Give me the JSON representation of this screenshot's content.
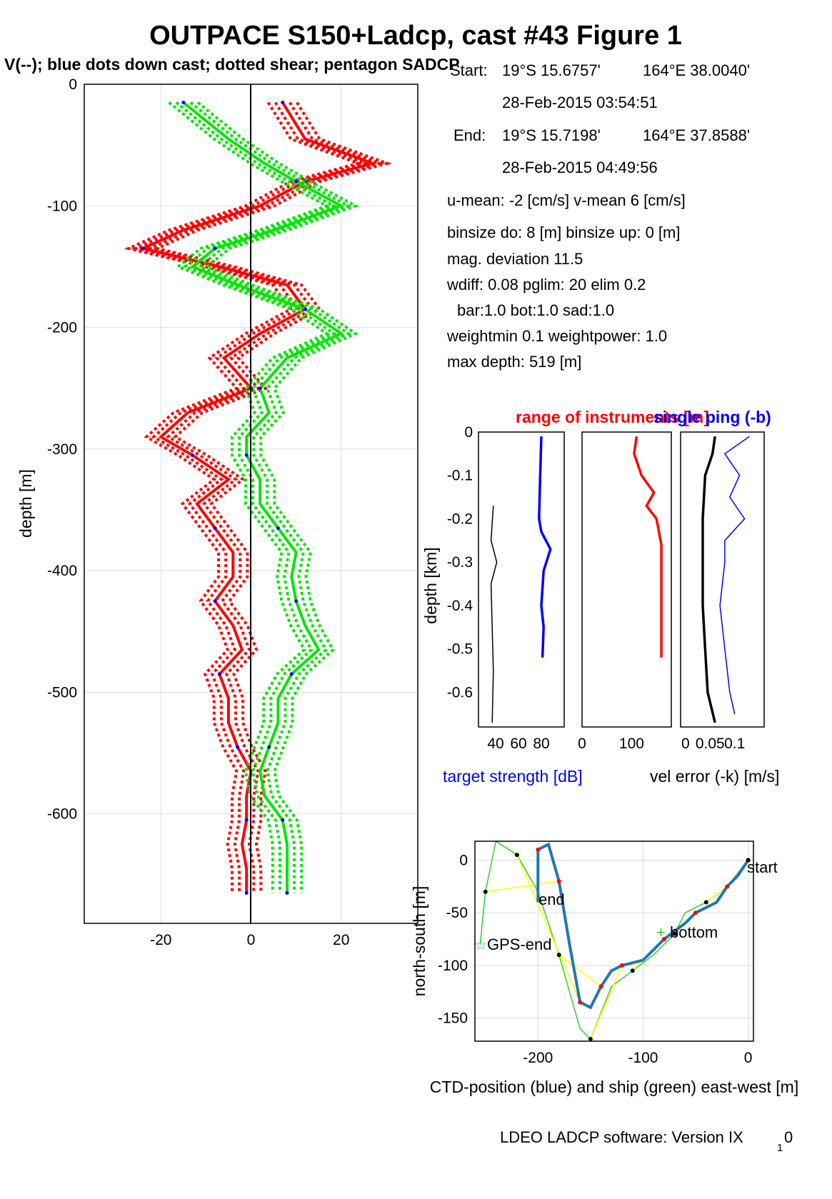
{
  "title": "OUTPACE S150+Ladcp, cast #43  Figure 1",
  "subtitle": "V(--); blue dots down cast; dotted shear; pentagon SADCP",
  "info": {
    "start_label": "Start:",
    "start_lat": "19°S 15.6757'",
    "start_lon": "164°E 38.0040'",
    "start_time": "28-Feb-2015 03:54:51",
    "end_label": "End:",
    "end_lat": "19°S 15.7198'",
    "end_lon": "164°E 37.8588'",
    "end_time": "28-Feb-2015 04:49:56",
    "means": "u-mean:  -2 [cm/s]    v-mean   6 [cm/s]",
    "binsize": "binsize do: 8 [m]  binsize up:  0 [m]",
    "magdev": "mag. deviation 11.5",
    "wdiff": "wdiff: 0.08  pglim: 20  elim 0.2",
    "bar": "bar:1.0 bot:1.0 sad:1.0",
    "weight": "weightmin 0.1  weightpower: 1.0",
    "maxdepth": "max depth: 519 [m]"
  },
  "footer": "LDEO LADCP software: Version IX",
  "footer_sub": "1",
  "footer_tail": "0",
  "colors": {
    "u": "#ff0000",
    "v": "#00e600",
    "blue": "#0000ff",
    "track": "#1f77b4",
    "ship": "#33cc33",
    "link": "#ffff00"
  },
  "chart_data": [
    {
      "type": "line",
      "id": "velocity-profile",
      "ylabel": "depth [m]",
      "xlim": [
        -37,
        37
      ],
      "ylim": [
        -690,
        0
      ],
      "xticks": [
        -20,
        0,
        20
      ],
      "yticks": [
        0,
        -100,
        -200,
        -300,
        -400,
        -500,
        -600
      ],
      "series": [
        {
          "color": "red",
          "depth": [
            -15,
            -45,
            -65,
            -80,
            -100,
            -120,
            -135,
            -150,
            -165,
            -185,
            -205,
            -225,
            -250,
            -270,
            -290,
            -305,
            -325,
            -345,
            -365,
            -385,
            -405,
            -425,
            -445,
            -465,
            -485,
            -505,
            -525,
            -545,
            -565,
            -585,
            -605,
            -625,
            -645,
            -665
          ],
          "values": [
            7,
            12,
            27,
            12,
            2,
            -15,
            -24,
            -7,
            8,
            12,
            2,
            -6,
            0,
            -14,
            -20,
            -13,
            -5,
            -12,
            -8,
            -4,
            -4,
            -8,
            -4,
            -2,
            -7,
            -5,
            -5,
            -3,
            0,
            -1,
            -1,
            -2,
            -1,
            -1
          ]
        },
        {
          "color": "green",
          "depth": [
            -15,
            -45,
            -65,
            -80,
            -100,
            -120,
            -135,
            -150,
            -165,
            -185,
            -205,
            -225,
            -250,
            -270,
            -290,
            -305,
            -325,
            -345,
            -365,
            -385,
            -405,
            -425,
            -445,
            -465,
            -485,
            -505,
            -525,
            -545,
            -565,
            -585,
            -605,
            -625,
            -645,
            -665
          ],
          "values": [
            -15,
            -5,
            3,
            10,
            20,
            5,
            -8,
            -13,
            -3,
            12,
            20,
            8,
            2,
            4,
            -1,
            -1,
            2,
            2,
            6,
            10,
            9,
            10,
            12,
            15,
            9,
            6,
            6,
            4,
            2,
            3,
            7,
            8,
            8,
            8
          ]
        }
      ]
    },
    {
      "type": "line",
      "id": "target-strength",
      "title": "range of instruments [m]",
      "xlabel": "target strength [dB]",
      "ylabel": "depth [km]",
      "ylim": [
        -0.68,
        0
      ],
      "yticks": [
        0,
        -0.1,
        -0.2,
        -0.3,
        -0.4,
        -0.5,
        -0.6
      ],
      "xticks": [
        "40",
        "60",
        "80"
      ],
      "series": [
        {
          "color": "black",
          "depth": [
            -0.17,
            -0.25,
            -0.3,
            -0.35,
            -0.45,
            -0.55,
            -0.67
          ],
          "values": [
            38,
            36,
            41,
            36,
            37,
            38,
            37
          ]
        },
        {
          "color": "blue",
          "depth": [
            -0.01,
            -0.1,
            -0.2,
            -0.23,
            -0.27,
            -0.32,
            -0.4,
            -0.45,
            -0.52
          ],
          "values": [
            80,
            79,
            78,
            80,
            88,
            82,
            80,
            82,
            81
          ]
        }
      ]
    },
    {
      "type": "line",
      "id": "range",
      "xticks": [
        "0",
        "100"
      ],
      "ylim": [
        -0.68,
        0
      ],
      "series": [
        {
          "color": "red",
          "depth": [
            -0.01,
            -0.05,
            -0.1,
            -0.14,
            -0.17,
            -0.2,
            -0.26,
            -0.35,
            -0.52
          ],
          "values": [
            110,
            105,
            120,
            145,
            130,
            150,
            160,
            160,
            160
          ]
        }
      ]
    },
    {
      "type": "line",
      "id": "vel-error",
      "title": "single ping (-b)",
      "xlabel": "vel error (-k) [m/s]",
      "xticks": [
        "0",
        "0.05",
        "0.1"
      ],
      "ylim": [
        -0.68,
        0
      ],
      "series": [
        {
          "color": "black",
          "depth": [
            -0.01,
            -0.05,
            -0.1,
            -0.2,
            -0.3,
            -0.4,
            -0.5,
            -0.6,
            -0.67
          ],
          "values": [
            0.06,
            0.055,
            0.04,
            0.035,
            0.035,
            0.035,
            0.04,
            0.045,
            0.06
          ]
        },
        {
          "color": "blue",
          "depth": [
            -0.01,
            -0.05,
            -0.1,
            -0.15,
            -0.2,
            -0.25,
            -0.3,
            -0.4,
            -0.5,
            -0.6,
            -0.65
          ],
          "values": [
            0.13,
            0.08,
            0.11,
            0.09,
            0.12,
            0.08,
            0.08,
            0.07,
            0.08,
            0.09,
            0.1
          ]
        }
      ]
    },
    {
      "type": "line",
      "id": "position",
      "xlabel": "CTD-position (blue) and ship (green) east-west [m]",
      "ylabel": "north-south [m]",
      "xlim": [
        -260,
        5
      ],
      "ylim": [
        -172,
        18
      ],
      "xticks": [
        -200,
        -100,
        0
      ],
      "yticks": [
        0,
        -50,
        -100,
        -150
      ],
      "labels": [
        "start",
        "end",
        "bottom",
        "GPS-end"
      ],
      "series": [
        {
          "name": "CTD",
          "x": [
            0,
            -10,
            -20,
            -30,
            -50,
            -60,
            -80,
            -100,
            -120,
            -130,
            -140,
            -150,
            -160,
            -170,
            -180,
            -190,
            -200,
            -200
          ],
          "y": [
            0,
            -15,
            -25,
            -40,
            -50,
            -60,
            -75,
            -95,
            -100,
            -105,
            -120,
            -140,
            -135,
            -80,
            -20,
            15,
            10,
            -40
          ]
        },
        {
          "name": "ship",
          "x": [
            0,
            -20,
            -40,
            -60,
            -70,
            -90,
            -110,
            -130,
            -150,
            -160,
            -180,
            -200,
            -220,
            -240,
            -250,
            -255
          ],
          "y": [
            0,
            -25,
            -40,
            -50,
            -70,
            -90,
            -105,
            -120,
            -170,
            -160,
            -90,
            -30,
            5,
            18,
            -30,
            -80
          ]
        }
      ]
    }
  ]
}
